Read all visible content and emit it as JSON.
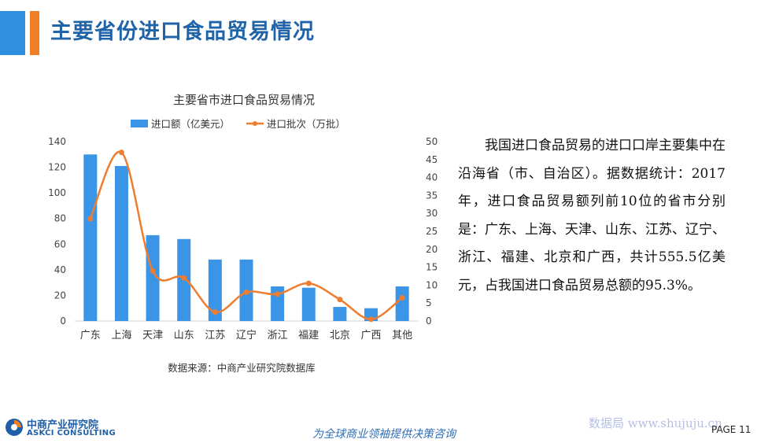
{
  "page": {
    "title": "主要省份进口食品贸易情况",
    "source": "数据来源：中商产业研究院数据库",
    "body_text": "我国进口食品贸易的进口口岸主要集中在沿海省（市、自治区）。据数据统计：2017年，进口食品贸易额列前10位的省市分别是：广东、上海、天津、山东、江苏、辽宁、浙江、福建、北京和广西，共计555.5亿美元，占我国进口食品贸易总额的95.3%。",
    "logo_cn": "中商产业研究院",
    "logo_en": "ASKCI CONSULTING",
    "slogan": "为全球商业领袖提供决策咨询",
    "watermark": "数据局 www.shujuju.cn",
    "page_label": "PAGE 11"
  },
  "colors": {
    "accent_blue": "#2f8fe0",
    "accent_orange": "#f07e25",
    "bar": "#3b95e6",
    "line": "#ed7d31",
    "title": "#1f63a8"
  },
  "chart_data": {
    "type": "bar",
    "title": "主要省市进口食品贸易情况",
    "categories": [
      "广东",
      "上海",
      "天津",
      "山东",
      "江苏",
      "辽宁",
      "浙江",
      "福建",
      "北京",
      "广西",
      "其他"
    ],
    "series": [
      {
        "name": "进口额（亿美元）",
        "type": "bar",
        "axis": "left",
        "values": [
          130,
          121,
          67,
          64,
          48,
          48,
          27,
          26,
          11,
          10,
          27
        ]
      },
      {
        "name": "进口批次（万批）",
        "type": "line",
        "axis": "right",
        "smooth": true,
        "values": [
          28.5,
          47,
          14,
          12,
          2.5,
          8,
          7.5,
          10.5,
          6,
          0.5,
          6.5
        ]
      }
    ],
    "y_left": {
      "min": 0,
      "max": 140,
      "ticks": [
        0,
        20,
        40,
        60,
        80,
        100,
        120,
        140
      ]
    },
    "y_right": {
      "min": 0,
      "max": 50,
      "ticks": [
        0,
        5,
        10,
        15,
        20,
        25,
        30,
        35,
        40,
        45,
        50
      ]
    },
    "legend": "top",
    "grid": false
  }
}
